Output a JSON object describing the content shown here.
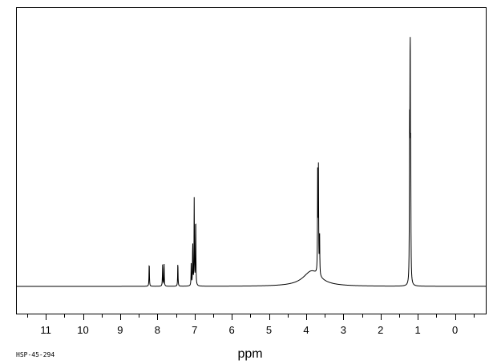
{
  "chart_data": {
    "type": "line",
    "title": "",
    "xlabel": "ppm",
    "ylabel": "",
    "x_reversed": true,
    "xlim": [
      11.8,
      -0.85
    ],
    "ylim": [
      0,
      1
    ],
    "grid": false,
    "legend": "none",
    "x_ticks": [
      {
        "value": 11,
        "label": "11"
      },
      {
        "value": 10,
        "label": "10"
      },
      {
        "value": 9,
        "label": "9"
      },
      {
        "value": 8,
        "label": "8"
      },
      {
        "value": 7,
        "label": "7"
      },
      {
        "value": 6,
        "label": "6"
      },
      {
        "value": 5,
        "label": "5"
      },
      {
        "value": 4,
        "label": "4"
      },
      {
        "value": 3,
        "label": "3"
      },
      {
        "value": 2,
        "label": "2"
      },
      {
        "value": 1,
        "label": "1"
      },
      {
        "value": 0,
        "label": "0"
      }
    ],
    "peaks": [
      {
        "ppm": 8.22,
        "height": 0.095
      },
      {
        "ppm": 7.86,
        "height": 0.09
      },
      {
        "ppm": 7.82,
        "height": 0.09
      },
      {
        "ppm": 7.45,
        "height": 0.095
      },
      {
        "ppm": 7.09,
        "height": 0.088
      },
      {
        "ppm": 7.05,
        "height": 0.17
      },
      {
        "ppm": 7.01,
        "height": 0.34
      },
      {
        "ppm": 6.97,
        "height": 0.28
      },
      {
        "ppm": 3.69,
        "height": 0.42
      },
      {
        "ppm": 3.67,
        "height": 0.4
      },
      {
        "ppm": 3.64,
        "height": 0.17
      },
      {
        "ppm": 1.22,
        "height": 0.54
      },
      {
        "ppm": 1.205,
        "height": 0.96
      },
      {
        "ppm": 1.19,
        "height": 0.45
      }
    ],
    "broad_peaks": [
      {
        "ppm": 3.85,
        "height": 0.06,
        "width": 0.28
      }
    ]
  },
  "footer": {
    "sample_id": "HSP-45-294"
  },
  "colors": {
    "line": "#000000",
    "background": "#ffffff"
  }
}
